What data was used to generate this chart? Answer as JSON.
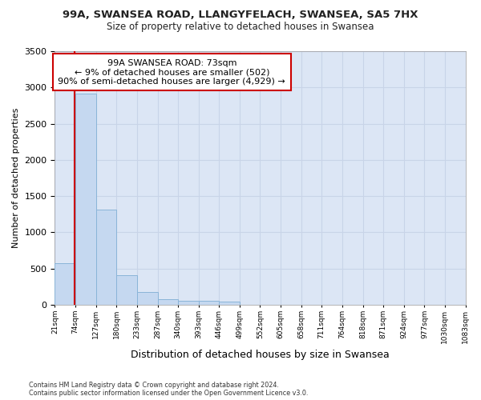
{
  "title": "99A, SWANSEA ROAD, LLANGYFELACH, SWANSEA, SA5 7HX",
  "subtitle": "Size of property relative to detached houses in Swansea",
  "xlabel": "Distribution of detached houses by size in Swansea",
  "ylabel": "Number of detached properties",
  "footer_line1": "Contains HM Land Registry data © Crown copyright and database right 2024.",
  "footer_line2": "Contains public sector information licensed under the Open Government Licence v3.0.",
  "bin_edges": [
    21,
    74,
    127,
    180,
    233,
    287,
    340,
    393,
    446,
    499,
    552,
    605,
    658,
    711,
    764,
    818,
    871,
    924,
    977,
    1030,
    1083
  ],
  "bin_labels": [
    "21sqm",
    "74sqm",
    "127sqm",
    "180sqm",
    "233sqm",
    "287sqm",
    "340sqm",
    "393sqm",
    "446sqm",
    "499sqm",
    "552sqm",
    "605sqm",
    "658sqm",
    "711sqm",
    "764sqm",
    "818sqm",
    "871sqm",
    "924sqm",
    "977sqm",
    "1030sqm",
    "1083sqm"
  ],
  "bar_heights": [
    570,
    2910,
    1310,
    410,
    175,
    80,
    55,
    50,
    40,
    0,
    0,
    0,
    0,
    0,
    0,
    0,
    0,
    0,
    0,
    0
  ],
  "bar_color": "#c5d8f0",
  "bar_edge_color": "#8ab4d8",
  "grid_color": "#c8d4e8",
  "property_size": 73,
  "vline_color": "#cc0000",
  "annotation_line1": "99A SWANSEA ROAD: 73sqm",
  "annotation_line2": "← 9% of detached houses are smaller (502)",
  "annotation_line3": "90% of semi-detached houses are larger (4,929) →",
  "annotation_box_color": "#ffffff",
  "annotation_box_edge_color": "#cc0000",
  "ylim": [
    0,
    3500
  ],
  "yticks": [
    0,
    500,
    1000,
    1500,
    2000,
    2500,
    3000,
    3500
  ],
  "background_color": "#ffffff",
  "axes_bg_color": "#dce6f5"
}
